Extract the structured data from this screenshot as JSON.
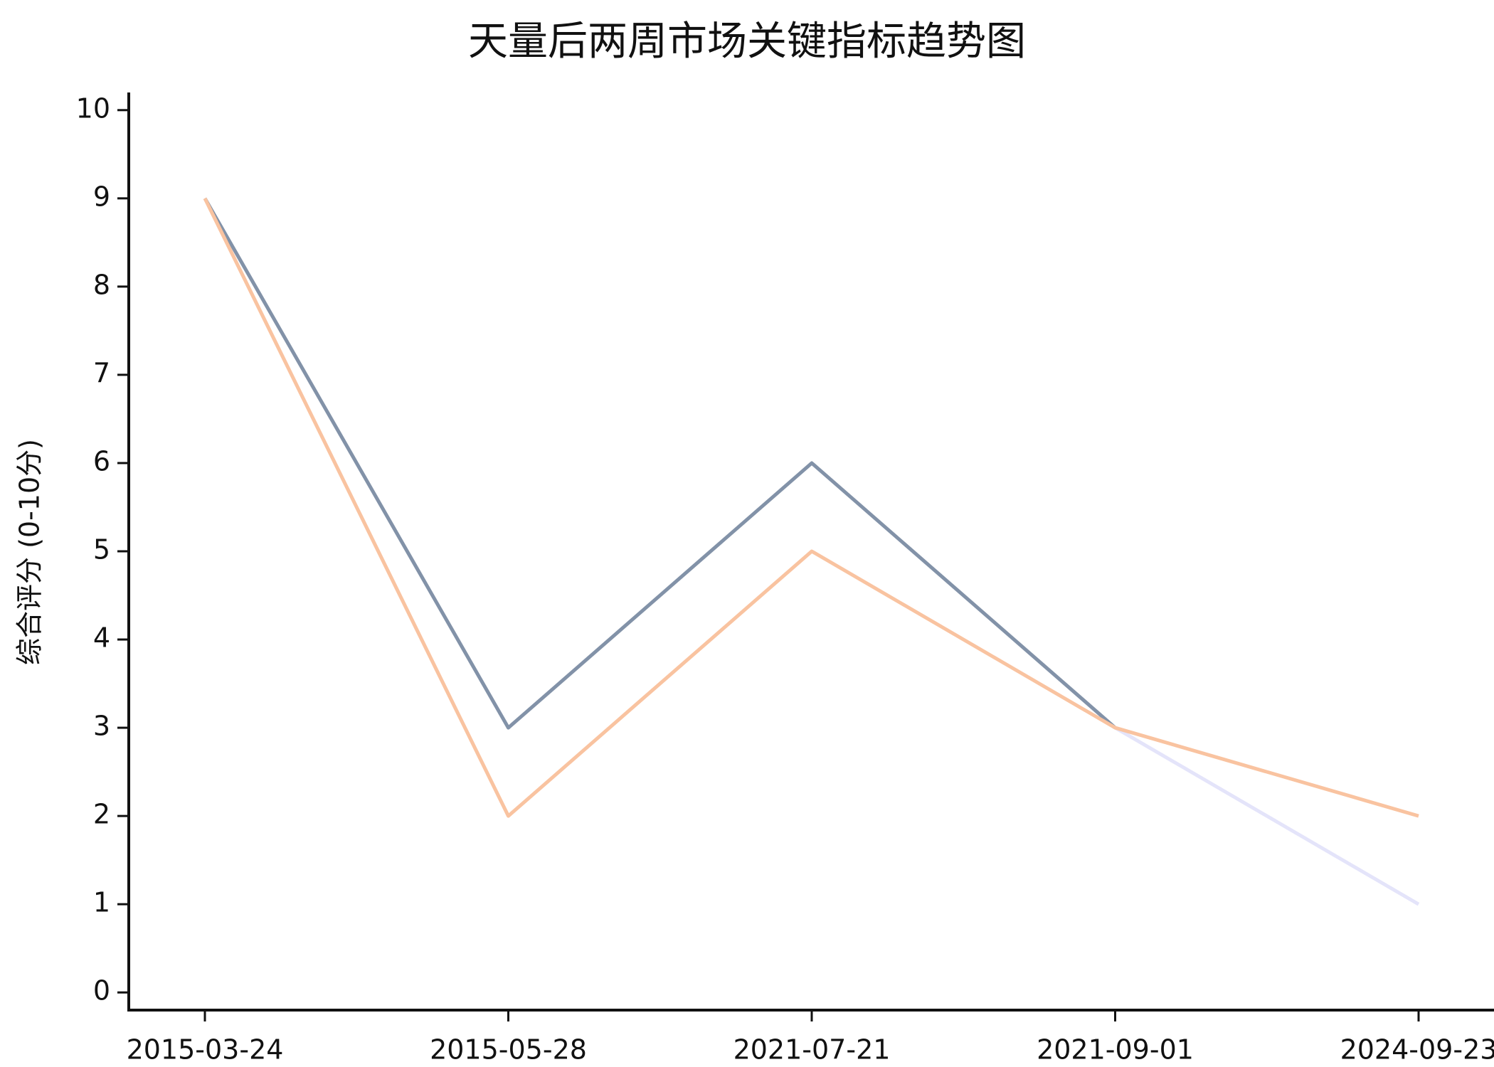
{
  "chart_data": {
    "type": "line",
    "title": "天量后两周市场关键指标趋势图",
    "y_label": "综合评分 (0-10分)",
    "categories": [
      "2015-03-24",
      "2015-05-28",
      "2021-07-21",
      "2021-09-01",
      "2024-09-23"
    ],
    "series": [
      {
        "color": "#8292a8",
        "values": [
          9,
          3,
          6,
          3,
          null
        ]
      },
      {
        "color": "#e4e4fa",
        "values": [
          null,
          null,
          null,
          3,
          1
        ]
      },
      {
        "color": "#f9c3a0",
        "values": [
          9,
          2,
          5,
          3,
          2
        ]
      }
    ],
    "ylim": [
      -0.2,
      10.2
    ],
    "yticks": [
      0,
      1,
      2,
      3,
      4,
      5,
      6,
      7,
      8,
      9,
      10
    ],
    "grid": false
  }
}
